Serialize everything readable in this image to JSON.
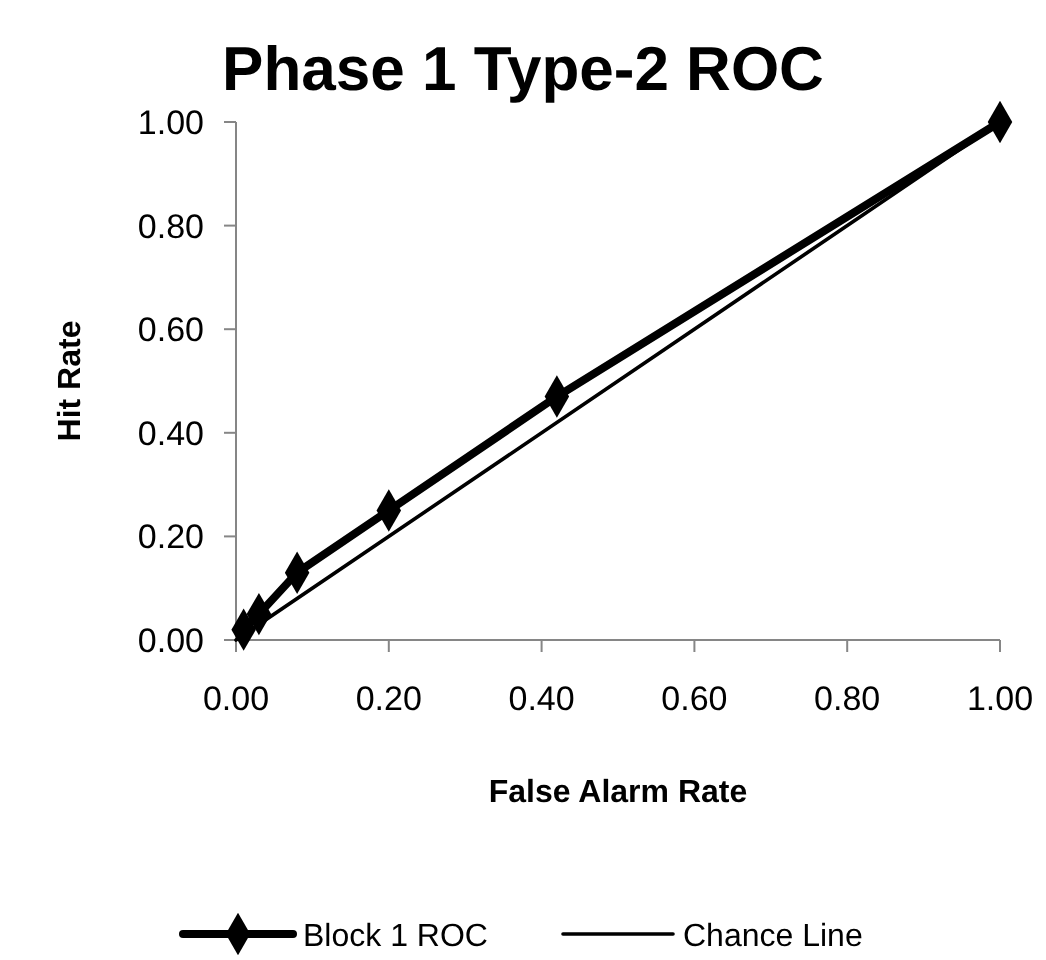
{
  "chart_data": {
    "type": "line",
    "title": "Phase 1 Type-2 ROC",
    "xlabel": "False Alarm Rate",
    "ylabel": "Hit Rate",
    "series": [
      {
        "name": "Block 1 ROC",
        "color": "#000000",
        "x": [
          0.01,
          0.03,
          0.08,
          0.2,
          0.42,
          1
        ],
        "values": [
          0.02,
          0.05,
          0.13,
          0.25,
          0.47,
          1
        ],
        "marker": "diamond"
      },
      {
        "name": "Chance Line",
        "color": "#000000",
        "x": [
          0,
          1
        ],
        "values": [
          0,
          1
        ],
        "marker": "none"
      }
    ],
    "xlim": [
      0,
      1
    ],
    "ylim": [
      0,
      1
    ],
    "xticks": [
      {
        "value": 0,
        "label": "0.00"
      },
      {
        "value": 0.2,
        "label": "0.20"
      },
      {
        "value": 0.4,
        "label": "0.40"
      },
      {
        "value": 0.6,
        "label": "0.60"
      },
      {
        "value": 0.8,
        "label": "0.80"
      },
      {
        "value": 1,
        "label": "1.00"
      }
    ],
    "yticks": [
      {
        "value": 0,
        "label": "0.00"
      },
      {
        "value": 0.2,
        "label": "0.20"
      },
      {
        "value": 0.4,
        "label": "0.40"
      },
      {
        "value": 0.6,
        "label": "0.60"
      },
      {
        "value": 0.8,
        "label": "0.80"
      },
      {
        "value": 1,
        "label": "1.00"
      }
    ],
    "grid": false,
    "legend": "bottom"
  }
}
